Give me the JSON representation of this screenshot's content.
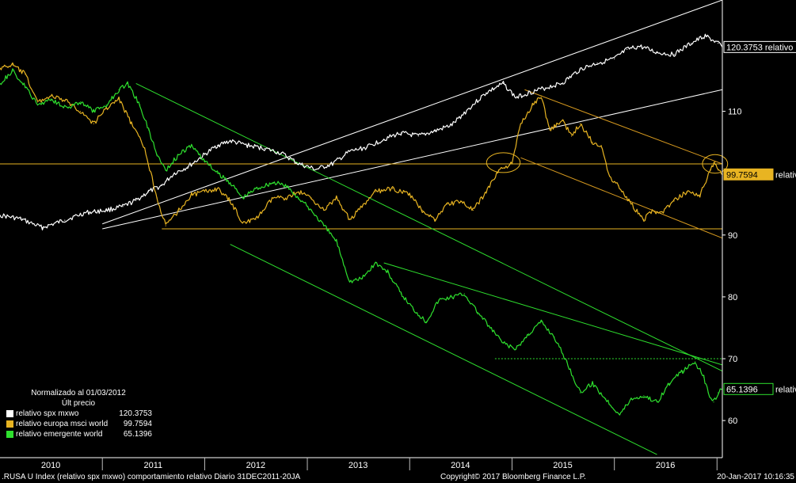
{
  "chart_data": {
    "type": "line",
    "x_range": [
      "2010-01-01",
      "2017-01-20"
    ],
    "ylim": [
      54,
      128
    ],
    "y_ticks": [
      60,
      70,
      80,
      90,
      110
    ],
    "x_ticks": [
      {
        "label": "2010",
        "date": "2010-07-01"
      },
      {
        "label": "2011",
        "date": "2011-07-01"
      },
      {
        "label": "2012",
        "date": "2012-07-01"
      },
      {
        "label": "2013",
        "date": "2013-07-01"
      },
      {
        "label": "2014",
        "date": "2014-07-01"
      },
      {
        "label": "2015",
        "date": "2015-07-01"
      },
      {
        "label": "2016",
        "date": "2016-07-01"
      }
    ],
    "legend": {
      "title": "Normalizado al 01/03/2012",
      "subtitle": "Últ precio",
      "placement": "bottom-left"
    },
    "series": [
      {
        "name": "relativo spx mxwo",
        "last": "120.3753",
        "tag": "120.3753 relativo",
        "color": "#ffffff",
        "points": [
          [
            "2010-01-01",
            93.2
          ],
          [
            "2010-03-15",
            92.6
          ],
          [
            "2010-06-01",
            91.2
          ],
          [
            "2010-08-20",
            92.4
          ],
          [
            "2010-11-01",
            93.6
          ],
          [
            "2011-01-15",
            94.0
          ],
          [
            "2011-03-15",
            94.6
          ],
          [
            "2011-05-01",
            95.6
          ],
          [
            "2011-06-15",
            97.0
          ],
          [
            "2011-08-01",
            98.0
          ],
          [
            "2011-09-15",
            100.0
          ],
          [
            "2011-11-01",
            101.0
          ],
          [
            "2012-01-01",
            103.0
          ],
          [
            "2012-02-15",
            104.5
          ],
          [
            "2012-04-01",
            105.2
          ],
          [
            "2012-06-01",
            104.5
          ],
          [
            "2012-08-01",
            104.0
          ],
          [
            "2012-10-01",
            103.2
          ],
          [
            "2012-12-01",
            101.5
          ],
          [
            "2013-02-01",
            100.6
          ],
          [
            "2013-04-01",
            101.5
          ],
          [
            "2013-06-01",
            103.5
          ],
          [
            "2013-08-01",
            104.2
          ],
          [
            "2013-10-01",
            105.5
          ],
          [
            "2013-12-01",
            106.5
          ],
          [
            "2014-02-01",
            106.0
          ],
          [
            "2014-04-01",
            106.8
          ],
          [
            "2014-06-01",
            107.8
          ],
          [
            "2014-08-01",
            110.5
          ],
          [
            "2014-10-01",
            113.0
          ],
          [
            "2014-12-01",
            114.5
          ],
          [
            "2015-01-15",
            112.2
          ],
          [
            "2015-03-01",
            113.0
          ],
          [
            "2015-05-01",
            113.8
          ],
          [
            "2015-07-01",
            114.6
          ],
          [
            "2015-09-01",
            116.8
          ],
          [
            "2015-11-01",
            117.8
          ],
          [
            "2016-01-01",
            118.5
          ],
          [
            "2016-02-15",
            120.0
          ],
          [
            "2016-04-01",
            120.5
          ],
          [
            "2016-06-01",
            119.5
          ],
          [
            "2016-08-01",
            119.2
          ],
          [
            "2016-10-01",
            121.0
          ],
          [
            "2016-11-20",
            122.2
          ],
          [
            "2017-01-05",
            121.0
          ],
          [
            "2017-01-20",
            120.4
          ]
        ]
      },
      {
        "name": "relativo europa msci world",
        "last": "99.7594",
        "tag": "99.7594",
        "tag_suffix": "relativo",
        "color": "#e8b422",
        "points": [
          [
            "2010-01-01",
            117.0
          ],
          [
            "2010-02-15",
            117.5
          ],
          [
            "2010-04-01",
            116.0
          ],
          [
            "2010-05-15",
            111.5
          ],
          [
            "2010-07-01",
            112.5
          ],
          [
            "2010-09-01",
            111.5
          ],
          [
            "2010-10-15",
            110.0
          ],
          [
            "2010-12-01",
            108.0
          ],
          [
            "2011-01-15",
            110.5
          ],
          [
            "2011-03-01",
            112.0
          ],
          [
            "2011-04-15",
            108.0
          ],
          [
            "2011-06-01",
            104.0
          ],
          [
            "2011-07-15",
            96.0
          ],
          [
            "2011-08-15",
            91.5
          ],
          [
            "2011-10-01",
            94.0
          ],
          [
            "2011-11-15",
            96.5
          ],
          [
            "2012-01-01",
            97.0
          ],
          [
            "2012-02-15",
            97.5
          ],
          [
            "2012-04-01",
            95.5
          ],
          [
            "2012-05-15",
            92.0
          ],
          [
            "2012-07-01",
            92.5
          ],
          [
            "2012-09-01",
            96.0
          ],
          [
            "2012-10-15",
            96.0
          ],
          [
            "2012-12-01",
            97.0
          ],
          [
            "2013-01-15",
            96.0
          ],
          [
            "2013-03-01",
            94.0
          ],
          [
            "2013-04-15",
            96.0
          ],
          [
            "2013-06-01",
            92.5
          ],
          [
            "2013-07-15",
            94.5
          ],
          [
            "2013-09-01",
            97.0
          ],
          [
            "2013-11-01",
            97.5
          ],
          [
            "2014-01-01",
            96.5
          ],
          [
            "2014-02-15",
            94.0
          ],
          [
            "2014-04-01",
            92.5
          ],
          [
            "2014-05-15",
            95.0
          ],
          [
            "2014-07-01",
            95.5
          ],
          [
            "2014-08-15",
            94.0
          ],
          [
            "2014-10-01",
            97.0
          ],
          [
            "2014-11-15",
            100.5
          ],
          [
            "2015-01-01",
            101.5
          ],
          [
            "2015-02-01",
            108.0
          ],
          [
            "2015-03-15",
            111.0
          ],
          [
            "2015-04-15",
            112.5
          ],
          [
            "2015-05-15",
            107.0
          ],
          [
            "2015-07-01",
            108.5
          ],
          [
            "2015-08-01",
            106.0
          ],
          [
            "2015-09-01",
            108.0
          ],
          [
            "2015-10-15",
            105.0
          ],
          [
            "2015-11-15",
            104.5
          ],
          [
            "2015-12-15",
            99.5
          ],
          [
            "2016-01-15",
            98.0
          ],
          [
            "2016-03-01",
            95.0
          ],
          [
            "2016-04-15",
            92.5
          ],
          [
            "2016-05-15",
            94.0
          ],
          [
            "2016-06-15",
            93.5
          ],
          [
            "2016-08-01",
            95.5
          ],
          [
            "2016-09-15",
            97.0
          ],
          [
            "2016-11-01",
            96.5
          ],
          [
            "2016-12-10",
            100.5
          ],
          [
            "2016-12-25",
            101.8
          ],
          [
            "2017-01-05",
            100.5
          ],
          [
            "2017-01-20",
            99.8
          ]
        ]
      },
      {
        "name": "relativo emergente world",
        "last": "65.1396",
        "tag": "65.1396",
        "tag_suffix": "relativo",
        "color": "#2ee02e",
        "points": [
          [
            "2010-01-01",
            114.5
          ],
          [
            "2010-02-15",
            116.5
          ],
          [
            "2010-04-01",
            114.0
          ],
          [
            "2010-05-15",
            111.0
          ],
          [
            "2010-07-01",
            112.0
          ],
          [
            "2010-09-01",
            110.5
          ],
          [
            "2010-10-15",
            111.5
          ],
          [
            "2010-12-01",
            110.0
          ],
          [
            "2011-01-15",
            111.0
          ],
          [
            "2011-03-01",
            113.5
          ],
          [
            "2011-04-01",
            114.5
          ],
          [
            "2011-05-15",
            111.0
          ],
          [
            "2011-06-15",
            107.0
          ],
          [
            "2011-07-15",
            103.0
          ],
          [
            "2011-08-15",
            100.5
          ],
          [
            "2011-10-01",
            103.0
          ],
          [
            "2011-11-15",
            104.5
          ],
          [
            "2012-01-01",
            102.0
          ],
          [
            "2012-02-15",
            100.0
          ],
          [
            "2012-04-01",
            98.5
          ],
          [
            "2012-05-15",
            96.0
          ],
          [
            "2012-07-01",
            97.5
          ],
          [
            "2012-09-01",
            98.5
          ],
          [
            "2012-10-15",
            98.0
          ],
          [
            "2012-12-01",
            96.0
          ],
          [
            "2013-01-15",
            94.0
          ],
          [
            "2013-03-01",
            91.5
          ],
          [
            "2013-04-15",
            89.0
          ],
          [
            "2013-06-01",
            82.5
          ],
          [
            "2013-07-15",
            83.0
          ],
          [
            "2013-09-01",
            85.5
          ],
          [
            "2013-10-15",
            84.0
          ],
          [
            "2013-12-01",
            80.5
          ],
          [
            "2014-01-15",
            78.0
          ],
          [
            "2014-03-01",
            76.0
          ],
          [
            "2014-04-15",
            79.5
          ],
          [
            "2014-06-01",
            80.0
          ],
          [
            "2014-07-15",
            80.5
          ],
          [
            "2014-09-01",
            77.5
          ],
          [
            "2014-10-15",
            75.0
          ],
          [
            "2014-12-01",
            72.5
          ],
          [
            "2015-01-15",
            71.5
          ],
          [
            "2015-03-01",
            74.0
          ],
          [
            "2015-04-15",
            76.0
          ],
          [
            "2015-06-01",
            73.5
          ],
          [
            "2015-07-15",
            69.5
          ],
          [
            "2015-09-01",
            64.5
          ],
          [
            "2015-10-15",
            66.0
          ],
          [
            "2015-12-01",
            63.5
          ],
          [
            "2016-01-20",
            61.0
          ],
          [
            "2016-03-01",
            63.5
          ],
          [
            "2016-04-15",
            64.0
          ],
          [
            "2016-06-01",
            63.0
          ],
          [
            "2016-07-15",
            66.0
          ],
          [
            "2016-09-01",
            68.0
          ],
          [
            "2016-10-15",
            69.5
          ],
          [
            "2016-11-15",
            67.0
          ],
          [
            "2016-12-01",
            64.5
          ],
          [
            "2016-12-20",
            63.0
          ],
          [
            "2017-01-05",
            64.5
          ],
          [
            "2017-01-20",
            65.1
          ]
        ]
      }
    ],
    "trend_lines": [
      {
        "color": "#ffffff",
        "from": [
          "2011-01-01",
          91.8
        ],
        "to": [
          "2017-01-20",
          128.0
        ]
      },
      {
        "color": "#ffffff",
        "from": [
          "2011-01-01",
          91.0
        ],
        "to": [
          "2017-01-20",
          113.5
        ]
      },
      {
        "color": "#e8b422",
        "from": [
          "2010-01-01",
          101.5
        ],
        "to": [
          "2017-01-20",
          101.5
        ]
      },
      {
        "color": "#e8b422",
        "from": [
          "2011-08-01",
          91.0
        ],
        "to": [
          "2017-01-20",
          91.0
        ]
      },
      {
        "color": "#d79a1f",
        "from": [
          "2015-02-15",
          113.5
        ],
        "to": [
          "2017-01-20",
          101.5
        ]
      },
      {
        "color": "#d79a1f",
        "from": [
          "2015-02-01",
          102.5
        ],
        "to": [
          "2017-01-20",
          89.5
        ]
      },
      {
        "color": "#2ee02e",
        "from": [
          "2011-05-01",
          114.5
        ],
        "to": [
          "2017-01-20",
          68.0
        ]
      },
      {
        "color": "#2ee02e",
        "from": [
          "2013-10-01",
          85.5
        ],
        "to": [
          "2017-01-20",
          69.0
        ]
      },
      {
        "color": "#2ee02e",
        "from": [
          "2012-04-01",
          88.5
        ],
        "to": [
          "2016-06-01",
          54.5
        ]
      },
      {
        "color": "#2ee02e",
        "from": [
          "2014-11-01",
          70.0
        ],
        "to": [
          "2017-01-20",
          70.0
        ],
        "dashed": true
      }
    ],
    "annotations": [
      {
        "type": "ellipse",
        "color": "#e8b422",
        "center": [
          "2014-12-01",
          101.7
        ],
        "rx_days": 60,
        "ry_value": 1.6
      },
      {
        "type": "ellipse",
        "color": "#e8b422",
        "center": [
          "2016-12-25",
          101.5
        ],
        "rx_days": 45,
        "ry_value": 1.5
      }
    ]
  },
  "footer": {
    "left": ".RUSA U Index (relativo spx mxwo) comportamiento relativo  Diario 31DEC2011-20JA",
    "center": "Copyright© 2017 Bloomberg Finance L.P.",
    "right": "20-Jan-2017 10:16:35"
  }
}
